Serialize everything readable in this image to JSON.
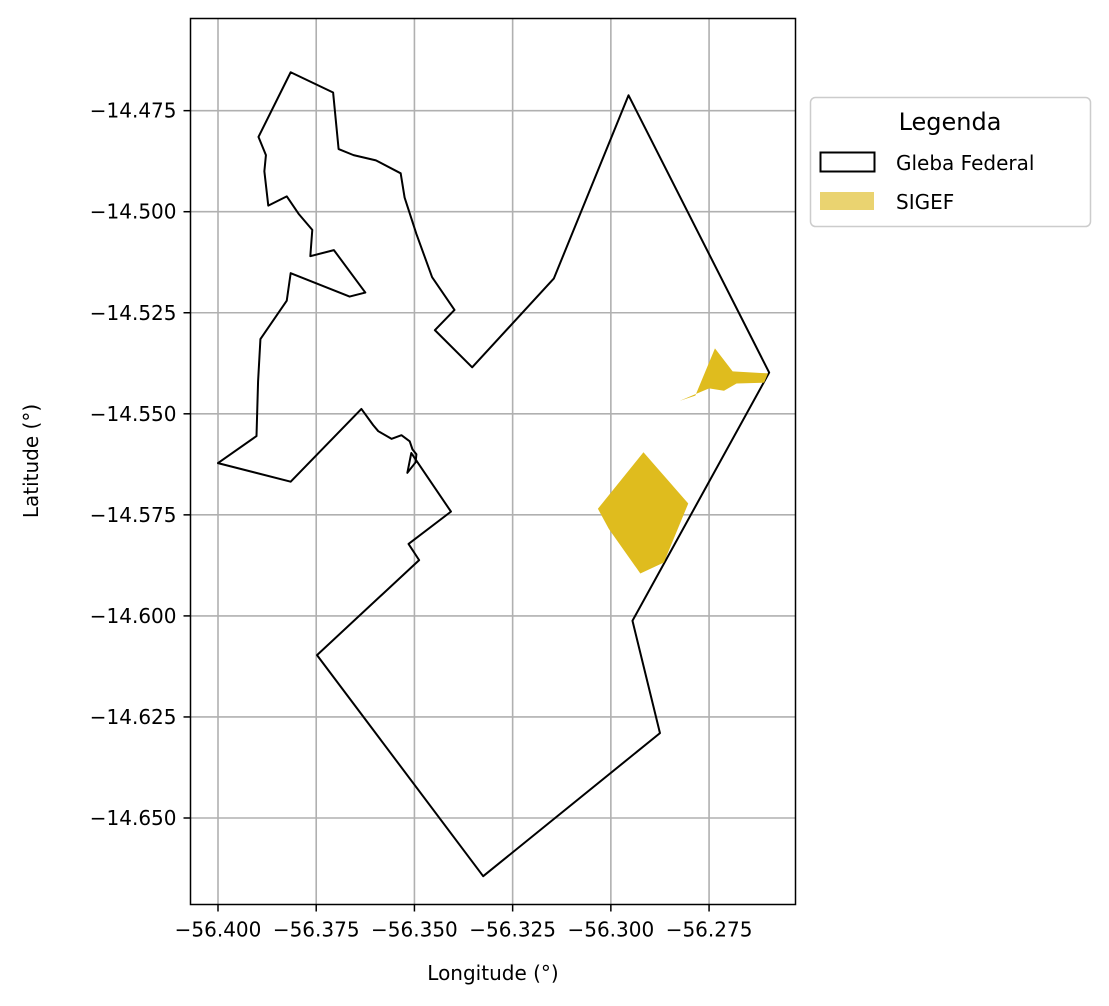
{
  "chart_data": {
    "type": "map",
    "title": "",
    "xlabel": "Longitude (°)",
    "ylabel": "Latitude (°)",
    "xlim": [
      -56.407,
      -56.253
    ],
    "ylim": [
      -14.6714,
      -14.4522
    ],
    "xticks": [
      -56.4,
      -56.375,
      -56.35,
      -56.325,
      -56.3,
      -56.275
    ],
    "xtick_labels": [
      "−56.400",
      "−56.375",
      "−56.350",
      "−56.325",
      "−56.300",
      "−56.275"
    ],
    "yticks": [
      -14.475,
      -14.5,
      -14.525,
      -14.55,
      -14.575,
      -14.6,
      -14.625,
      -14.65
    ],
    "ytick_labels": [
      "−14.475",
      "−14.500",
      "−14.525",
      "−14.550",
      "−14.575",
      "−14.600",
      "−14.625",
      "−14.650"
    ],
    "grid": true,
    "legend": {
      "title": "Legenda",
      "placement": "outside-right-top",
      "entries": [
        {
          "label": "Gleba Federal",
          "style": "outline",
          "color": "#000000"
        },
        {
          "label": "SIGEF",
          "style": "fill",
          "color": "#dfbc1e"
        }
      ]
    },
    "series": [
      {
        "name": "Gleba Federal",
        "kind": "polygon-outline",
        "color": "#000000",
        "coords": [
          [
            -56.4,
            -14.5622
          ],
          [
            -56.3815,
            -14.5668
          ],
          [
            -56.3635,
            -14.5488
          ],
          [
            -56.3605,
            -14.5528
          ],
          [
            -56.3592,
            -14.5543
          ],
          [
            -56.3558,
            -14.5562
          ],
          [
            -56.3533,
            -14.5553
          ],
          [
            -56.3512,
            -14.5568
          ],
          [
            -56.3505,
            -14.5588
          ],
          [
            -56.3495,
            -14.56
          ],
          [
            -56.3497,
            -14.562
          ],
          [
            -56.3518,
            -14.5646
          ],
          [
            -56.3508,
            -14.5597
          ],
          [
            -56.3407,
            -14.5742
          ],
          [
            -56.3515,
            -14.5822
          ],
          [
            -56.3488,
            -14.5862
          ],
          [
            -56.3748,
            -14.6097
          ],
          [
            -56.3325,
            -14.6644
          ],
          [
            -56.2875,
            -14.629
          ],
          [
            -56.2945,
            -14.6012
          ],
          [
            -56.2597,
            -14.5398
          ],
          [
            -56.2955,
            -14.4712
          ],
          [
            -56.3145,
            -14.5165
          ],
          [
            -56.3353,
            -14.5385
          ],
          [
            -56.3448,
            -14.5293
          ],
          [
            -56.3398,
            -14.5243
          ],
          [
            -56.3455,
            -14.5162
          ],
          [
            -56.3495,
            -14.5055
          ],
          [
            -56.3525,
            -14.4965
          ],
          [
            -56.3535,
            -14.4905
          ],
          [
            -56.3598,
            -14.4873
          ],
          [
            -56.3655,
            -14.486
          ],
          [
            -56.3693,
            -14.4845
          ],
          [
            -56.3707,
            -14.4705
          ],
          [
            -56.3815,
            -14.4655
          ],
          [
            -56.3897,
            -14.4815
          ],
          [
            -56.3878,
            -14.486
          ],
          [
            -56.3882,
            -14.49
          ],
          [
            -56.3872,
            -14.4985
          ],
          [
            -56.3825,
            -14.4962
          ],
          [
            -56.3795,
            -14.5005
          ],
          [
            -56.376,
            -14.5045
          ],
          [
            -56.3765,
            -14.511
          ],
          [
            -56.3705,
            -14.5095
          ],
          [
            -56.3625,
            -14.52
          ],
          [
            -56.3665,
            -14.521
          ],
          [
            -56.3815,
            -14.5152
          ],
          [
            -56.3825,
            -14.522
          ],
          [
            -56.3892,
            -14.5315
          ],
          [
            -56.3898,
            -14.542
          ],
          [
            -56.3902,
            -14.5555
          ],
          [
            -56.4,
            -14.5622
          ]
        ]
      },
      {
        "name": "SIGEF",
        "kind": "polygon-fill",
        "color": "#dfbc1e",
        "polygons": [
          [
            [
              -56.3033,
              -14.5735
            ],
            [
              -56.2917,
              -14.5595
            ],
            [
              -56.2803,
              -14.5722
            ],
            [
              -56.2865,
              -14.5868
            ],
            [
              -56.2925,
              -14.5895
            ],
            [
              -56.3005,
              -14.5785
            ],
            [
              -56.3033,
              -14.5735
            ]
          ],
          [
            [
              -56.2825,
              -14.5468
            ],
            [
              -56.2785,
              -14.5455
            ],
            [
              -56.2735,
              -14.5338
            ],
            [
              -56.269,
              -14.5395
            ],
            [
              -56.26,
              -14.54
            ],
            [
              -56.261,
              -14.5423
            ],
            [
              -56.268,
              -14.5425
            ],
            [
              -56.2712,
              -14.5443
            ],
            [
              -56.275,
              -14.5437
            ],
            [
              -56.2825,
              -14.5468
            ]
          ]
        ]
      }
    ]
  }
}
